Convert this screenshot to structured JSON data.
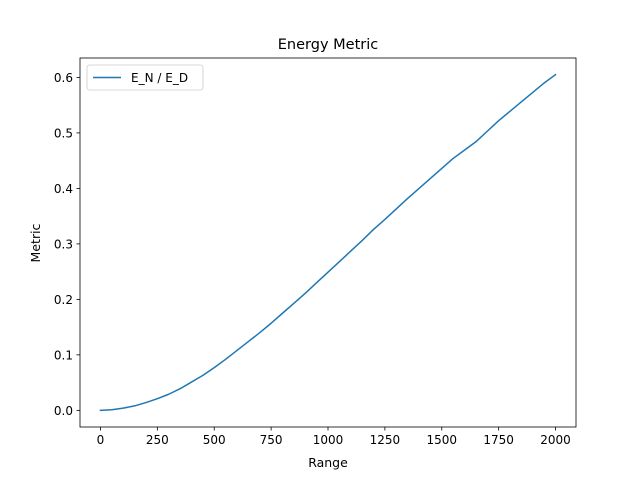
{
  "chart_data": {
    "type": "line",
    "title": "Energy Metric",
    "xlabel": "Range",
    "ylabel": "Metric",
    "xlim": [
      -90,
      2090
    ],
    "ylim": [
      -0.03,
      0.635
    ],
    "xticks": [
      0,
      250,
      500,
      750,
      1000,
      1250,
      1500,
      1750,
      2000
    ],
    "xtick_labels": [
      "0",
      "250",
      "500",
      "750",
      "1000",
      "1250",
      "1500",
      "1750",
      "2000"
    ],
    "yticks": [
      0.0,
      0.1,
      0.2,
      0.3,
      0.4,
      0.5,
      0.6
    ],
    "ytick_labels": [
      "0.0",
      "0.1",
      "0.2",
      "0.3",
      "0.4",
      "0.5",
      "0.6"
    ],
    "grid": false,
    "legend_position": "top-left",
    "series": [
      {
        "name": "E_N / E_D",
        "color": "#1f77b4",
        "x": [
          0,
          50,
          100,
          150,
          200,
          250,
          300,
          350,
          400,
          450,
          500,
          550,
          600,
          650,
          700,
          750,
          800,
          850,
          900,
          950,
          1000,
          1050,
          1100,
          1150,
          1200,
          1250,
          1300,
          1350,
          1400,
          1450,
          1500,
          1550,
          1600,
          1650,
          1700,
          1750,
          1800,
          1850,
          1900,
          1950,
          2000
        ],
        "y": [
          0.0,
          0.001,
          0.004,
          0.008,
          0.014,
          0.021,
          0.029,
          0.039,
          0.051,
          0.063,
          0.077,
          0.092,
          0.108,
          0.124,
          0.14,
          0.157,
          0.175,
          0.193,
          0.211,
          0.23,
          0.249,
          0.268,
          0.287,
          0.306,
          0.326,
          0.344,
          0.363,
          0.382,
          0.4,
          0.418,
          0.436,
          0.454,
          0.469,
          0.484,
          0.503,
          0.522,
          0.539,
          0.556,
          0.573,
          0.59,
          0.605
        ]
      }
    ]
  }
}
